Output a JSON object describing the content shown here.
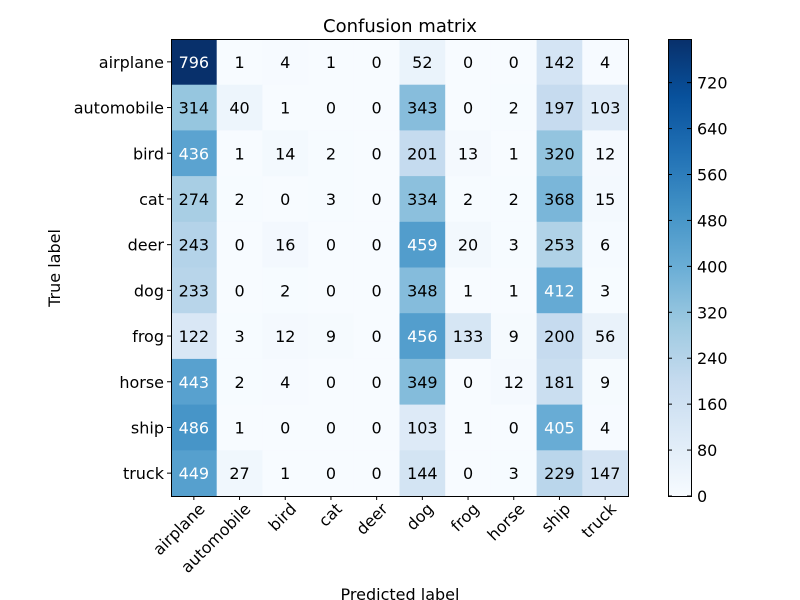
{
  "chart_data": {
    "type": "heatmap",
    "title": "Confusion matrix",
    "xlabel": "Predicted label",
    "ylabel": "True label",
    "labels": [
      "airplane",
      "automobile",
      "bird",
      "cat",
      "deer",
      "dog",
      "frog",
      "horse",
      "ship",
      "truck"
    ],
    "matrix": [
      [
        796,
        1,
        4,
        1,
        0,
        52,
        0,
        0,
        142,
        4
      ],
      [
        314,
        40,
        1,
        0,
        0,
        343,
        0,
        2,
        197,
        103
      ],
      [
        436,
        1,
        14,
        2,
        0,
        201,
        13,
        1,
        320,
        12
      ],
      [
        274,
        2,
        0,
        3,
        0,
        334,
        2,
        2,
        368,
        15
      ],
      [
        243,
        0,
        16,
        0,
        0,
        459,
        20,
        3,
        253,
        6
      ],
      [
        233,
        0,
        2,
        0,
        0,
        348,
        1,
        1,
        412,
        3
      ],
      [
        122,
        3,
        12,
        9,
        0,
        456,
        133,
        9,
        200,
        56
      ],
      [
        443,
        2,
        4,
        0,
        0,
        349,
        0,
        12,
        181,
        9
      ],
      [
        486,
        1,
        0,
        0,
        0,
        103,
        1,
        0,
        405,
        4
      ],
      [
        449,
        27,
        1,
        0,
        0,
        144,
        0,
        3,
        229,
        147
      ]
    ],
    "colormap": "Blues",
    "vmin": 0,
    "vmax": 796,
    "colorbar_ticks": [
      0,
      80,
      160,
      240,
      320,
      400,
      480,
      560,
      640,
      720
    ],
    "text_color_threshold": 398,
    "grid": false
  }
}
